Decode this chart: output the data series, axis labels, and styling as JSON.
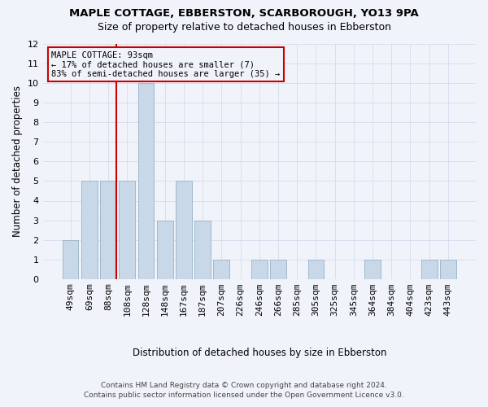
{
  "title": "MAPLE COTTAGE, EBBERSTON, SCARBOROUGH, YO13 9PA",
  "subtitle": "Size of property relative to detached houses in Ebberston",
  "xlabel": "Distribution of detached houses by size in Ebberston",
  "ylabel": "Number of detached properties",
  "categories": [
    "49sqm",
    "69sqm",
    "88sqm",
    "108sqm",
    "128sqm",
    "148sqm",
    "167sqm",
    "187sqm",
    "207sqm",
    "226sqm",
    "246sqm",
    "266sqm",
    "285sqm",
    "305sqm",
    "325sqm",
    "345sqm",
    "364sqm",
    "384sqm",
    "404sqm",
    "423sqm",
    "443sqm"
  ],
  "values": [
    2,
    5,
    5,
    5,
    10,
    3,
    5,
    3,
    1,
    0,
    1,
    1,
    0,
    1,
    0,
    0,
    1,
    0,
    0,
    1,
    1
  ],
  "bar_color": "#c8d8e8",
  "bar_edge_color": "#a0b8cc",
  "highlight_line_color": "#cc0000",
  "annotation_line1": "MAPLE COTTAGE: 93sqm",
  "annotation_line2": "← 17% of detached houses are smaller (7)",
  "annotation_line3": "83% of semi-detached houses are larger (35) →",
  "ylim": [
    0,
    12
  ],
  "yticks": [
    0,
    1,
    2,
    3,
    4,
    5,
    6,
    7,
    8,
    9,
    10,
    11,
    12
  ],
  "footer_line1": "Contains HM Land Registry data © Crown copyright and database right 2024.",
  "footer_line2": "Contains public sector information licensed under the Open Government Licence v3.0.",
  "background_color": "#f0f4fa",
  "grid_color": "#d0d8e8"
}
